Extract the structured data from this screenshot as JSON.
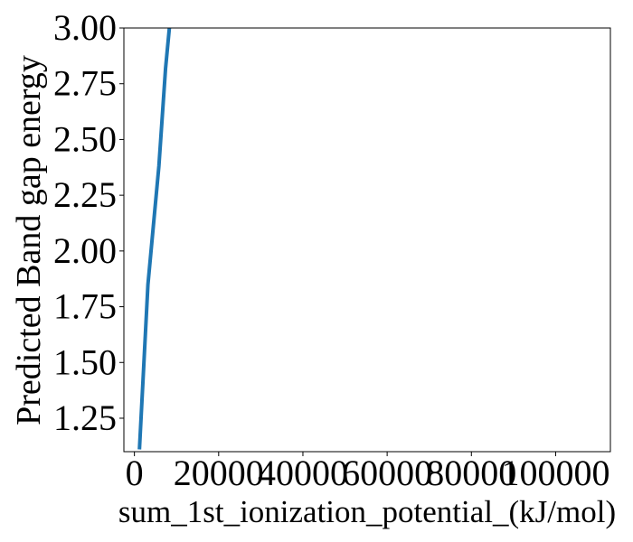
{
  "chart_data": {
    "type": "line",
    "title": "",
    "xlabel": "sum_1st_ionization_potential_(kJ/mol)",
    "ylabel": "Predicted Band gap energy",
    "xlim": [
      -2500,
      113000
    ],
    "ylim": [
      1.1,
      3.0
    ],
    "x_ticks": [
      0,
      20000,
      40000,
      60000,
      80000,
      100000
    ],
    "x_tick_labels": [
      "0",
      "20000",
      "40000",
      "60000",
      "80000",
      "100000"
    ],
    "y_ticks": [
      1.25,
      1.5,
      1.75,
      2.0,
      2.25,
      2.5,
      2.75,
      3.0
    ],
    "y_tick_labels": [
      "1.25",
      "1.50",
      "1.75",
      "2.00",
      "2.25",
      "2.50",
      "2.75",
      "3.00"
    ],
    "grid": false,
    "legend": "none",
    "line_color": "#1f77b4",
    "series": [
      {
        "x": [
          1200,
          3200,
          5800,
          7400,
          8300
        ],
        "y": [
          1.11,
          1.85,
          2.38,
          2.82,
          3.0
        ]
      }
    ]
  }
}
